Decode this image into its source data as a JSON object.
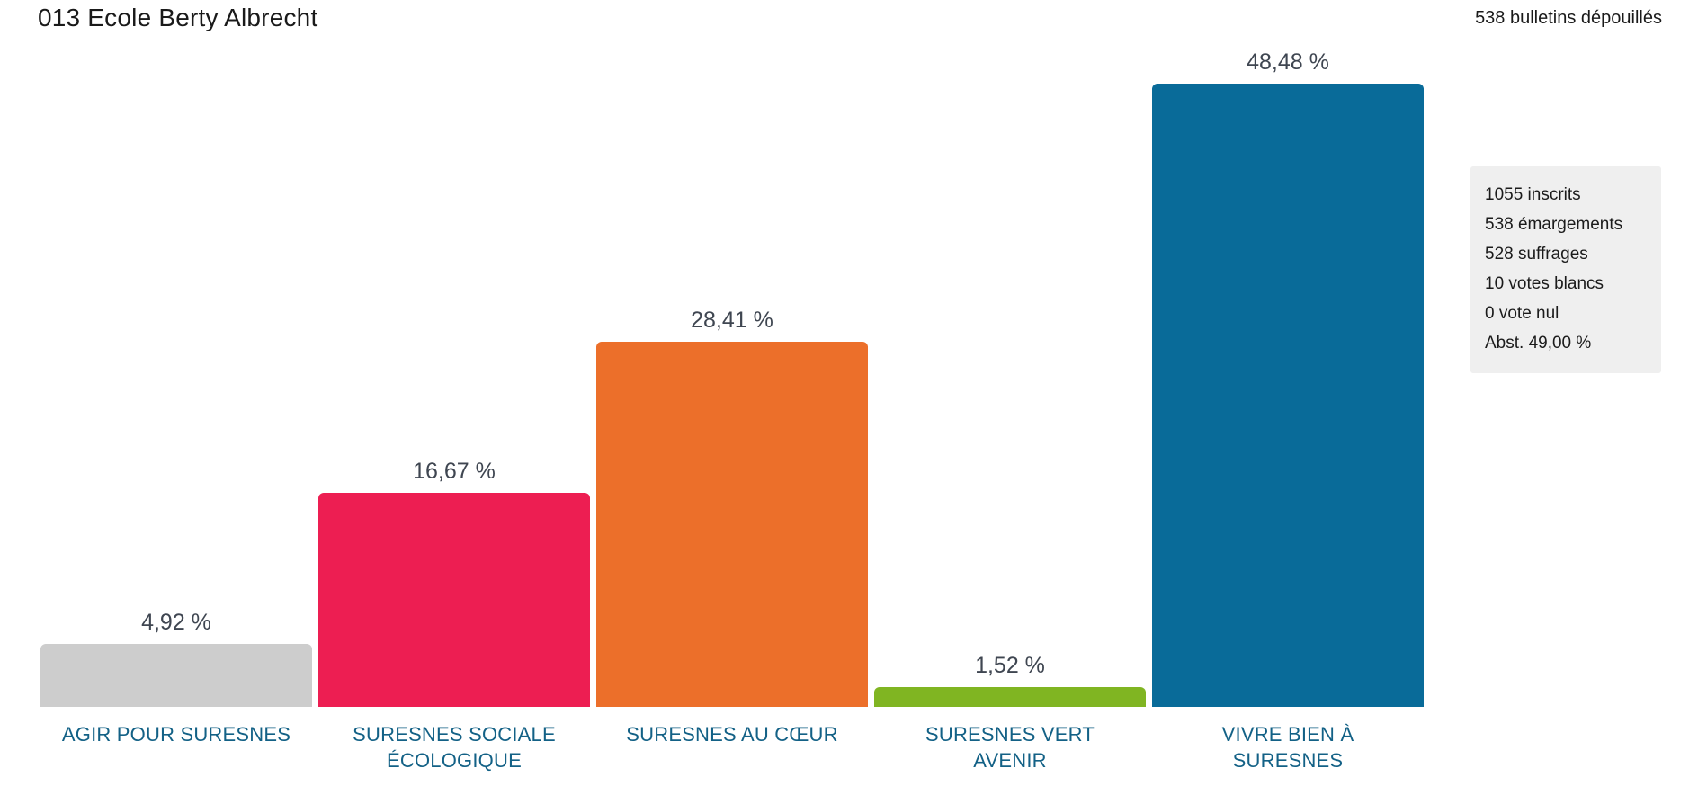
{
  "header": {
    "title": "013 Ecole Berty Albrecht",
    "bulletins": "538 bulletins dépouillés"
  },
  "stats_panel": {
    "lines": [
      "1055 inscrits",
      "538 émargements",
      "528 suffrages",
      "10 votes blancs",
      "0 vote nul",
      "Abst. 49,00 %"
    ]
  },
  "chart_data": {
    "type": "bar",
    "title": "013 Ecole Berty Albrecht",
    "subtitle": "538 bulletins dépouillés",
    "categories": [
      "AGIR POUR SURESNES",
      "SURESNES SOCIALE ÉCOLOGIQUE",
      "SURESNES AU CŒUR",
      "SURESNES VERT AVENIR",
      "VIVRE BIEN À SURESNES"
    ],
    "category_lines": [
      [
        "AGIR POUR SURESNES"
      ],
      [
        "SURESNES SOCIALE",
        "ÉCOLOGIQUE"
      ],
      [
        "SURESNES AU CŒUR"
      ],
      [
        "SURESNES VERT",
        "AVENIR"
      ],
      [
        "VIVRE BIEN À",
        "SURESNES"
      ]
    ],
    "values": [
      4.92,
      16.67,
      28.41,
      1.52,
      48.48
    ],
    "value_labels": [
      "4,92 %",
      "16,67 %",
      "28,41 %",
      "1,52 %",
      "48,48 %"
    ],
    "colors": [
      "#cdcdcd",
      "#ed1e52",
      "#ec6f2a",
      "#80b522",
      "#096b99"
    ],
    "xlabel": "",
    "ylabel": "",
    "ylim": [
      0,
      50
    ],
    "grid": false,
    "legend_position": "none",
    "axes_hidden": true
  },
  "theme": {
    "page_bg": "#ffffff",
    "panel_bg": "#efefef",
    "title_color": "#1a1a1a",
    "value_label_color": "#3f4651",
    "category_label_color": "#136186"
  }
}
